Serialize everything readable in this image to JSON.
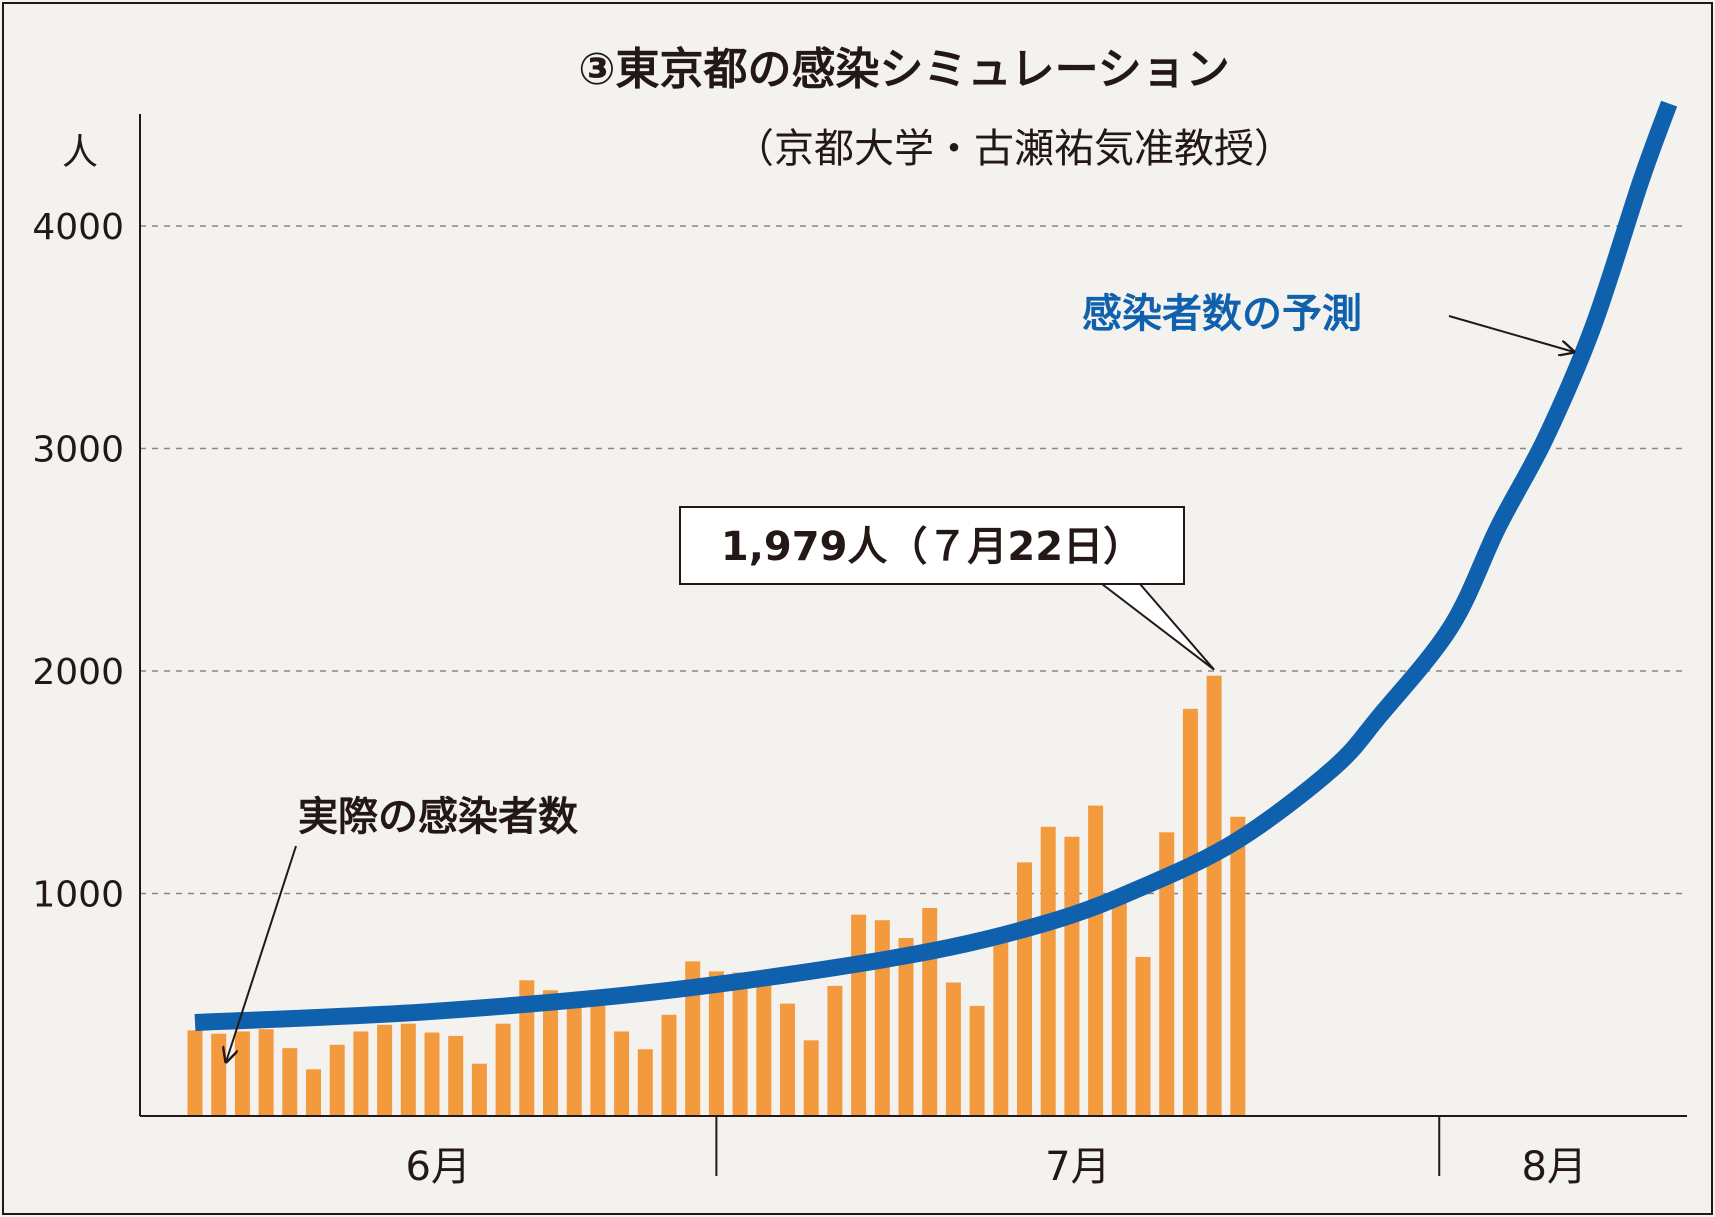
{
  "chart_data": {
    "type": "bar+line",
    "title": "③東京都の感染シミュレーション",
    "subtitle": "（京都大学・古瀬祐気准教授）",
    "y_unit_label": "人",
    "ylim": [
      0,
      4500
    ],
    "y_ticks": [
      1000,
      2000,
      3000,
      4000
    ],
    "grid": "horizontal-dashed",
    "months": [
      {
        "label": "6月",
        "day_start": 0,
        "day_end": 22
      },
      {
        "label": "7月",
        "day_start": 22,
        "day_end": 52.5
      },
      {
        "label": "8月",
        "day_start": 52.5,
        "day_end": 62.2
      }
    ],
    "bars": {
      "name": "実際の感染者数",
      "color": "#f39a3f",
      "values": [
        385,
        370,
        380,
        390,
        305,
        210,
        320,
        380,
        410,
        415,
        375,
        360,
        235,
        415,
        610,
        565,
        550,
        495,
        380,
        300,
        455,
        695,
        650,
        645,
        630,
        505,
        340,
        585,
        905,
        880,
        800,
        935,
        600,
        495,
        820,
        1140,
        1300,
        1255,
        1395,
        995,
        715,
        1275,
        1830,
        1979,
        1345
      ]
    },
    "forecast_line": {
      "name": "感染者数の予測",
      "color": "#0f61ad",
      "x": [
        0,
        10,
        20,
        30,
        36,
        40,
        44,
        48,
        50,
        53,
        55,
        57,
        59,
        61,
        62.2
      ],
      "values": [
        420,
        470,
        565,
        720,
        870,
        1030,
        1240,
        1560,
        1800,
        2200,
        2650,
        3050,
        3550,
        4200,
        4550
      ]
    },
    "callout": {
      "text": "1,979人（７月22日）",
      "value": 1979,
      "day": 43
    },
    "annotations": {
      "forecast": "感染者数の予測",
      "actual": "実際の感染者数"
    }
  }
}
